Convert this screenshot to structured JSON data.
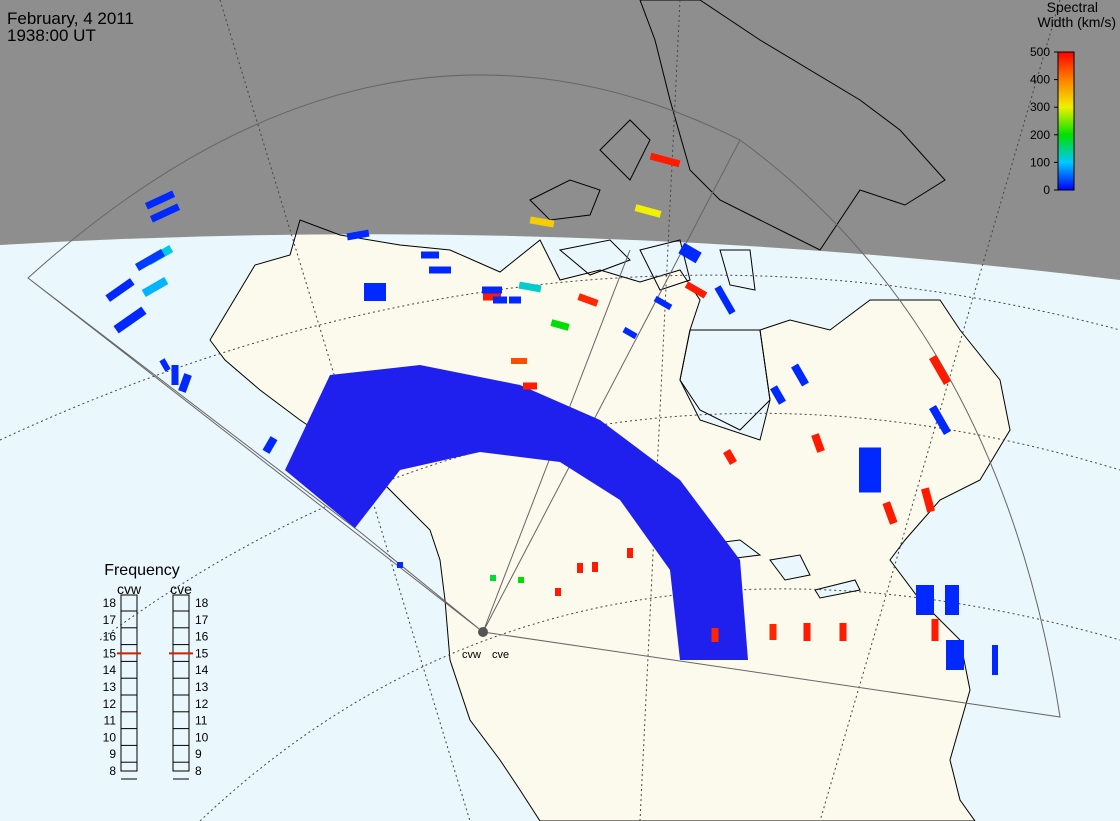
{
  "header": {
    "date": "February, 4 2011",
    "time": "1938:00 UT"
  },
  "colorbar": {
    "title_line1": "Spectral",
    "title_line2": "Width (km/s)",
    "range": [
      0,
      500
    ],
    "ticks": [
      0,
      100,
      200,
      300,
      400,
      500
    ]
  },
  "frequency": {
    "title": "Frequency",
    "ylim": [
      8,
      18
    ],
    "ticks": [
      8,
      9,
      10,
      11,
      12,
      13,
      14,
      15,
      16,
      17,
      18
    ],
    "radars": [
      {
        "name": "cvw",
        "value": 15
      },
      {
        "name": "cve",
        "value": 15
      }
    ]
  },
  "cells": [
    480,
    300,
    330,
    20,
    120,
    480,
    470,
    200,
    440,
    480,
    480,
    480,
    480,
    480,
    480,
    480,
    470,
    470,
    480,
    480,
    480,
    480,
    480,
    480,
    480,
    110,
    90,
    200,
    180,
    20,
    20,
    30,
    20,
    20,
    20,
    20,
    20,
    20,
    20,
    20,
    20,
    20,
    20,
    20,
    20,
    20,
    20,
    20,
    20,
    20,
    20,
    20,
    20,
    20,
    20,
    20,
    20
  ]
}
